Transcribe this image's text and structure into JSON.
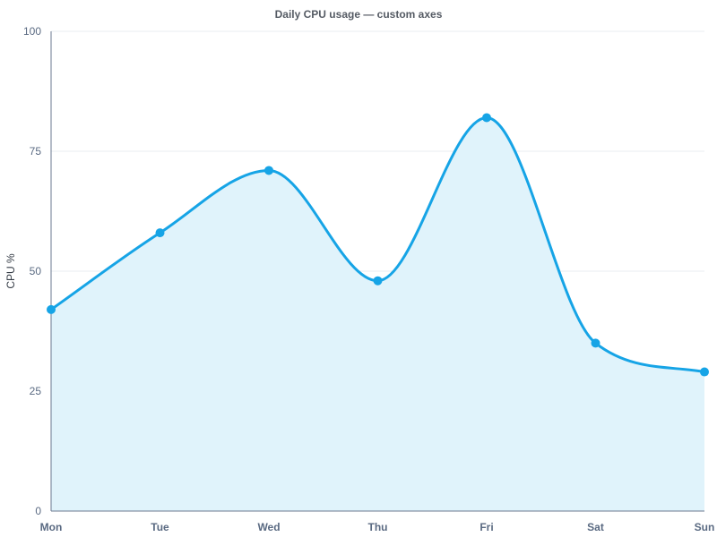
{
  "chart_data": {
    "type": "area",
    "title": "Daily CPU usage — custom axes",
    "xlabel": "",
    "ylabel": "CPU %",
    "categories": [
      "Mon",
      "Tue",
      "Wed",
      "Thu",
      "Fri",
      "Sat",
      "Sun"
    ],
    "series": [
      {
        "values": [
          42,
          58,
          71,
          48,
          82,
          35,
          29
        ]
      }
    ],
    "ylim": [
      0,
      100
    ],
    "yticks": [
      0,
      25,
      50,
      75,
      100
    ],
    "ytick_labels": [
      "0",
      "25",
      "50",
      "75",
      "100"
    ],
    "grid": true,
    "legend": "none",
    "smooth": true,
    "colors": {
      "line": "#16a4e6",
      "fill": "#e0f3fb",
      "marker": "#16a4e6"
    }
  }
}
